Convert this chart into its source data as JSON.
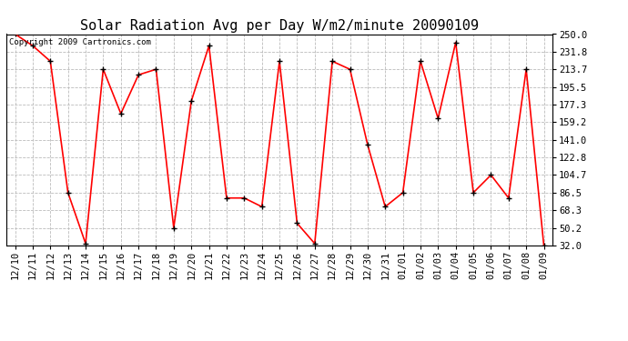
{
  "title": "Solar Radiation Avg per Day W/m2/minute 20090109",
  "copyright_text": "Copyright 2009 Cartronics.com",
  "line_color": "#ff0000",
  "marker_color": "#000000",
  "background_color": "#ffffff",
  "grid_color": "#bbbbbb",
  "labels": [
    "12/10",
    "12/11",
    "12/12",
    "12/13",
    "12/14",
    "12/15",
    "12/16",
    "12/17",
    "12/18",
    "12/19",
    "12/20",
    "12/21",
    "12/22",
    "12/23",
    "12/24",
    "12/25",
    "12/26",
    "12/27",
    "12/28",
    "12/29",
    "12/30",
    "12/31",
    "01/01",
    "01/02",
    "01/03",
    "01/04",
    "01/05",
    "01/06",
    "01/07",
    "01/08",
    "01/09"
  ],
  "values": [
    250.0,
    238.0,
    222.0,
    86.5,
    34.0,
    213.7,
    168.0,
    208.0,
    213.7,
    50.2,
    181.0,
    238.0,
    81.0,
    81.0,
    72.0,
    222.0,
    55.0,
    34.0,
    222.0,
    213.7,
    136.0,
    72.0,
    86.5,
    222.0,
    163.0,
    241.5,
    86.5,
    104.7,
    81.0,
    213.7,
    32.0
  ],
  "yticks": [
    32.0,
    50.2,
    68.3,
    86.5,
    104.7,
    122.8,
    141.0,
    159.2,
    177.3,
    195.5,
    213.7,
    231.8,
    250.0
  ],
  "ymin": 32.0,
  "ymax": 250.0,
  "title_fontsize": 11,
  "tick_fontsize": 7.5,
  "copyright_fontsize": 6.5
}
